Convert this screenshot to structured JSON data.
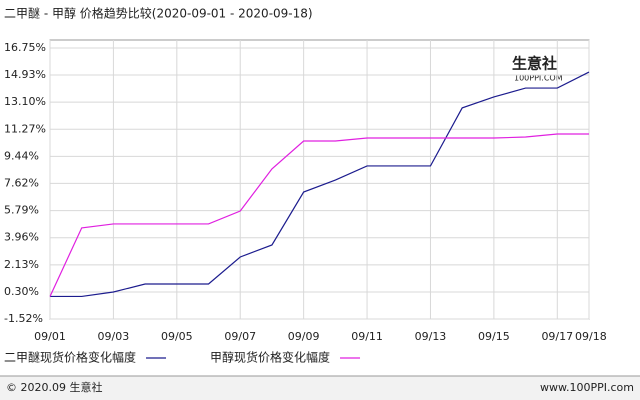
{
  "chart_data": {
    "type": "line",
    "title": "二甲醚 - 甲醇 价格趋势比较(2020-09-01 - 2020-09-18)",
    "categories": [
      "09/01",
      null,
      "09/03",
      null,
      "09/05",
      null,
      "09/07",
      null,
      "09/09",
      null,
      "09/11",
      null,
      "09/13",
      null,
      "09/15",
      null,
      "09/17",
      "09/18"
    ],
    "series": [
      {
        "name": "二甲醚现货价格变化幅度",
        "color": "#1c1c8e",
        "values": [
          0,
          0,
          0.3,
          0.84,
          0.84,
          0.84,
          2.66,
          3.47,
          7.04,
          7.85,
          8.8,
          8.8,
          8.8,
          12.71,
          13.45,
          14.05,
          14.05,
          15.13
        ]
      },
      {
        "name": "甲醇现货价格变化幅度",
        "color": "#e020e0",
        "values": [
          0,
          4.62,
          4.89,
          4.89,
          4.89,
          4.89,
          5.76,
          8.6,
          10.48,
          10.48,
          10.68,
          10.68,
          10.68,
          10.68,
          10.68,
          10.75,
          10.95,
          10.95
        ]
      }
    ],
    "ylim": [
      -1.52,
      16.75
    ],
    "yticks": [
      {
        "value": -1.52,
        "label": "-1.52%"
      },
      {
        "value": 0.3,
        "label": "0.30%"
      },
      {
        "value": 2.13,
        "label": "2.13%"
      },
      {
        "value": 3.96,
        "label": "3.96%"
      },
      {
        "value": 5.79,
        "label": "5.79%"
      },
      {
        "value": 7.62,
        "label": "7.62%"
      },
      {
        "value": 9.44,
        "label": "9.44%"
      },
      {
        "value": 11.27,
        "label": "11.27%"
      },
      {
        "value": 13.1,
        "label": "13.10%"
      },
      {
        "value": 14.93,
        "label": "14.93%"
      },
      {
        "value": 16.75,
        "label": "16.75%"
      }
    ],
    "grid": true,
    "watermark": {
      "name": "生意社",
      "site": "100PPI.COM"
    },
    "footer": {
      "left": "© 2020.09 生意社",
      "right": "www.100PPI.com"
    }
  }
}
